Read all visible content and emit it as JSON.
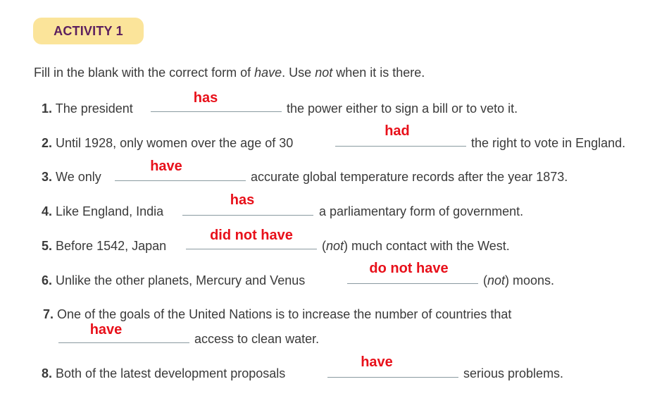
{
  "activity": {
    "label": "ACTIVITY 1"
  },
  "instruction": {
    "part1": "Fill in the blank with the correct form of ",
    "word_have": "have",
    "part2": ". Use ",
    "word_not": "not",
    "part3": " when it is there."
  },
  "items": [
    {
      "num": "1.",
      "before": "The president",
      "answer": "has",
      "after": "the power either to sign a bill or to veto it."
    },
    {
      "num": "2.",
      "before": "Until 1928, only women over the age of 30",
      "answer": "had",
      "after": "the right to vote in England."
    },
    {
      "num": "3.",
      "before": "We only",
      "answer": "have",
      "after": "accurate global temperature records after the year 1873."
    },
    {
      "num": "4.",
      "before": "Like England, India",
      "answer": "has",
      "after": "a parliamentary form of government."
    },
    {
      "num": "5.",
      "before": "Before 1542, Japan",
      "answer": "did not have",
      "after_not": "not",
      "after": "much contact with the West."
    },
    {
      "num": "6.",
      "before": "Unlike the other planets, Mercury and Venus",
      "answer": "do not have",
      "after_not": "not",
      "after": "moons."
    },
    {
      "num": "7.",
      "before": "One of the goals of the United Nations is to increase the number of countries that",
      "answer": "have",
      "after": "access to clean water."
    },
    {
      "num": "8.",
      "before": "Both of the latest development proposals",
      "answer": "have",
      "after": "serious problems."
    }
  ],
  "colors": {
    "badge_bg": "#fbe49a",
    "badge_text": "#5b1f5e",
    "answer_text": "#e8101a",
    "body_text": "#3a3a3a",
    "blank_line": "#8a9aa0"
  }
}
